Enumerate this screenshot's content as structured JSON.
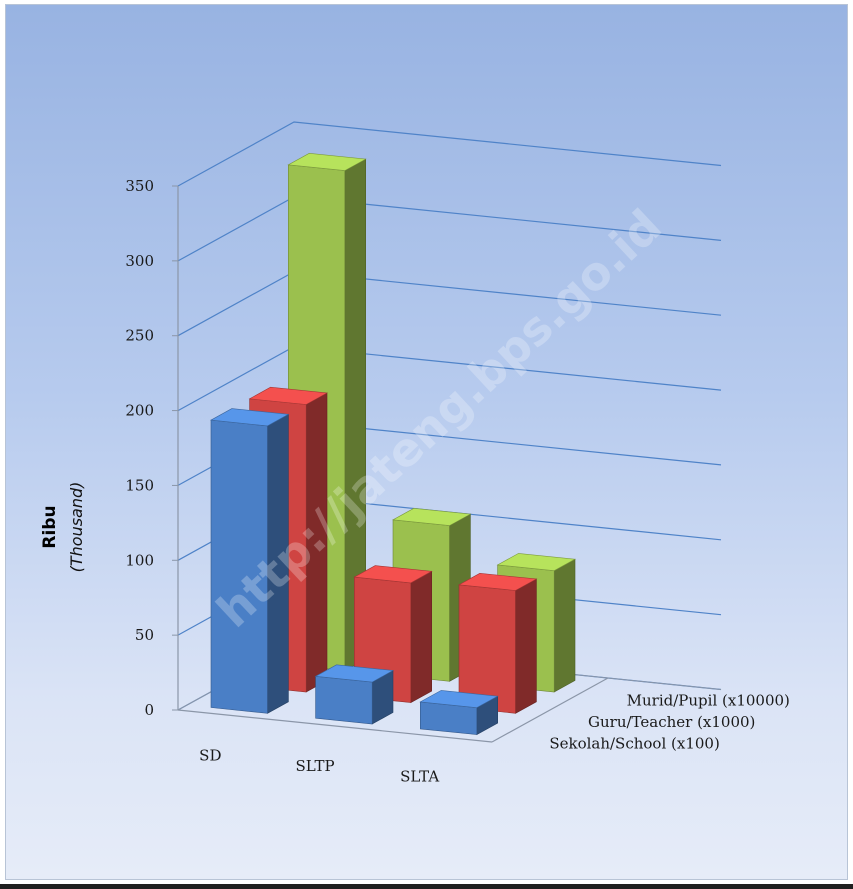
{
  "chart_data": {
    "type": "bar",
    "subtype": "3d-clustered-column",
    "categories": [
      "SD",
      "SLTP",
      "SLTA"
    ],
    "series": [
      {
        "name": "Sekolah/School (x100)",
        "values": [
          192,
          28,
          18
        ],
        "color": "#4a7fc6"
      },
      {
        "name": "Guru/Teacher (x1000)",
        "values": [
          192,
          80,
          82
        ],
        "color": "#cf4442"
      },
      {
        "name": "Murid/Pupil (x10000)",
        "values": [
          334,
          104,
          81
        ],
        "color": "#9bc04e"
      }
    ],
    "yticks": [
      "0",
      "50",
      "100",
      "150",
      "200",
      "250",
      "300",
      "350"
    ],
    "ylim": [
      0,
      350
    ],
    "ylabel": "Ribu",
    "ylabel_sub": "(Thousand)",
    "watermark": "http://jateng.bps.go.id",
    "grid": true
  }
}
